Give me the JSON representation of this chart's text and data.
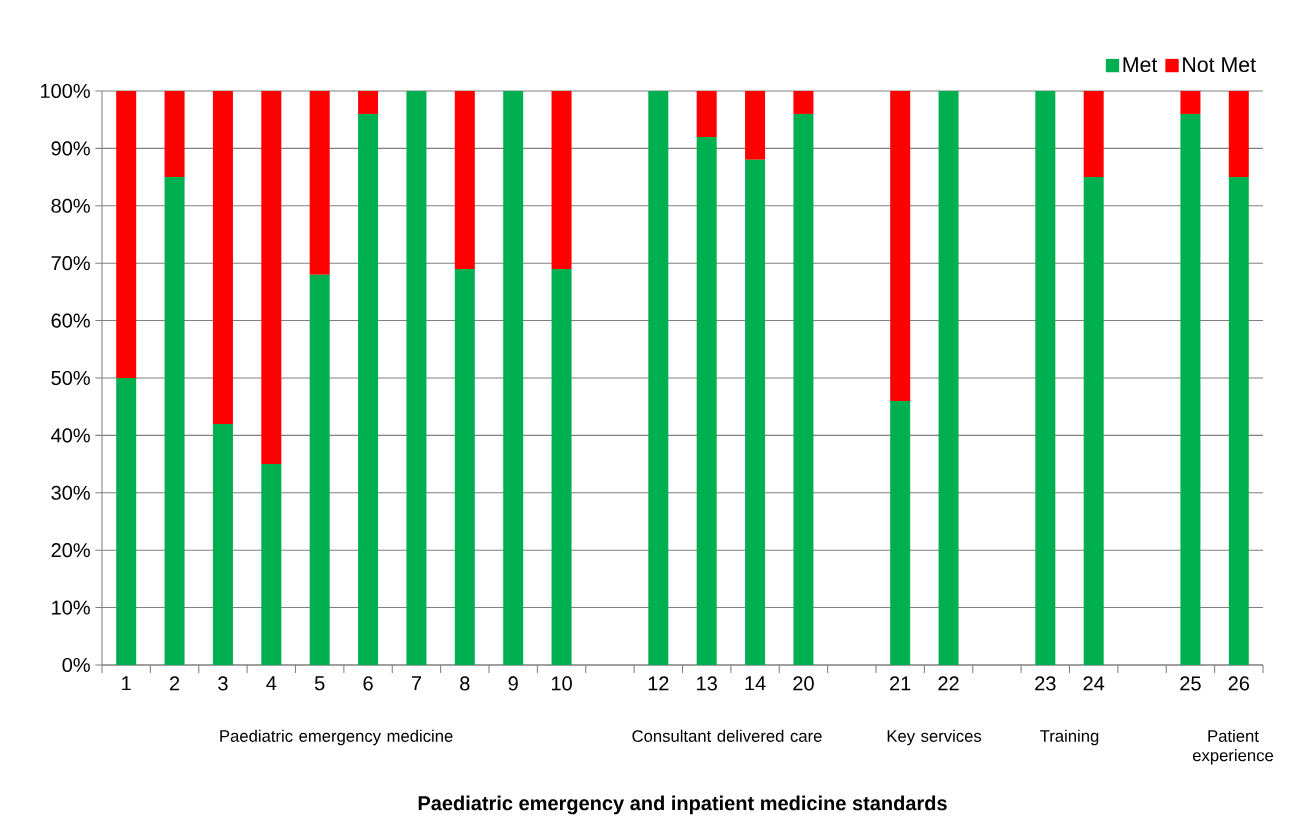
{
  "chart_data": {
    "type": "bar",
    "stacked": true,
    "categories": [
      "1",
      "2",
      "3",
      "4",
      "5",
      "6",
      "7",
      "8",
      "9",
      "10",
      null,
      "12",
      "13",
      "14",
      "20",
      null,
      "21",
      "22",
      null,
      "23",
      "24",
      null,
      "25",
      "26"
    ],
    "series": [
      {
        "name": "Met",
        "color": "#00b050",
        "values": [
          50,
          85,
          42,
          35,
          68,
          96,
          100,
          69,
          100,
          69,
          null,
          100,
          92,
          88,
          96,
          null,
          46,
          100,
          null,
          100,
          85,
          null,
          96,
          85
        ]
      },
      {
        "name": "Not Met",
        "color": "#ff0000",
        "values": [
          50,
          15,
          58,
          65,
          32,
          4,
          0,
          31,
          0,
          31,
          null,
          0,
          8,
          12,
          4,
          null,
          54,
          0,
          null,
          0,
          15,
          null,
          4,
          15
        ]
      }
    ],
    "ylim": [
      0,
      100
    ],
    "yticks": [
      {
        "value": 0,
        "label": "0%"
      },
      {
        "value": 10,
        "label": "10%"
      },
      {
        "value": 20,
        "label": "20%"
      },
      {
        "value": 30,
        "label": "30%"
      },
      {
        "value": 40,
        "label": "40%"
      },
      {
        "value": 50,
        "label": "50%"
      },
      {
        "value": 60,
        "label": "60%"
      },
      {
        "value": 70,
        "label": "70%"
      },
      {
        "value": 80,
        "label": "80%"
      },
      {
        "value": 90,
        "label": "90%"
      },
      {
        "value": 100,
        "label": "100%"
      }
    ],
    "grid": "y",
    "legend": "top right",
    "annotations": [
      "Paediatric emergency medicine",
      "Consultant delivered care",
      "Key services",
      "Training",
      "Patient experience",
      "Paediatric emergency and inpatient medicine standards"
    ]
  }
}
